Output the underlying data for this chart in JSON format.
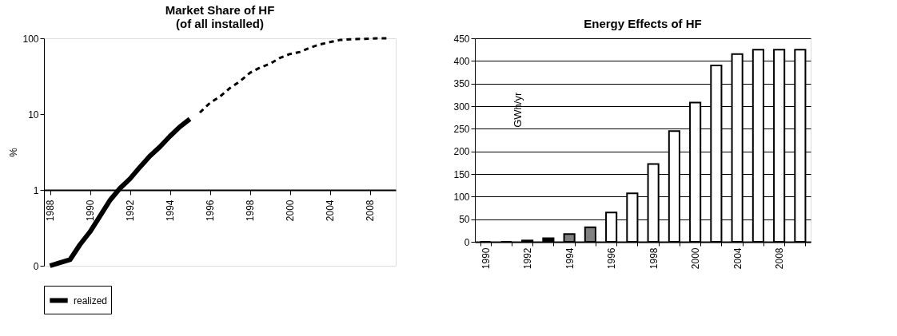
{
  "chart_data": [
    {
      "type": "line",
      "title": "Market Share of HF\n(of all installed)",
      "ylabel": "%",
      "categories": [
        "1988",
        null,
        null,
        null,
        "1990",
        null,
        null,
        null,
        "1992",
        null,
        null,
        null,
        "1994",
        null,
        null,
        null,
        "1996",
        null,
        null,
        null,
        "1998",
        null,
        null,
        null,
        "2000",
        null,
        null,
        null,
        "2004",
        null,
        null,
        null,
        "2008",
        null,
        null
      ],
      "series": [
        {
          "name": "realized",
          "color": "#000000",
          "line_style": "solid",
          "values": [
            0.1,
            0.11,
            0.12,
            0.19,
            0.28,
            0.45,
            0.73,
            1.05,
            1.4,
            2.0,
            2.8,
            3.7,
            5.1,
            6.8,
            8.6,
            null,
            null,
            null,
            null,
            null,
            null,
            null,
            null,
            null,
            null,
            null,
            null,
            null,
            null,
            null,
            null,
            null,
            null,
            null,
            null
          ]
        },
        {
          "color": "#000000",
          "line_style": "dashed",
          "values": [
            null,
            null,
            null,
            null,
            null,
            null,
            null,
            null,
            null,
            null,
            null,
            null,
            null,
            null,
            null,
            10.5,
            14,
            17,
            22,
            27,
            35,
            41,
            46,
            55,
            62,
            66,
            75,
            83,
            89,
            95,
            97,
            98,
            99,
            100,
            100
          ]
        }
      ],
      "log": "y",
      "ylim": [
        0.1,
        100
      ],
      "yticks": [
        {
          "value": 0.1,
          "label": "0"
        },
        1,
        10,
        100
      ],
      "legend": "bottom",
      "grid": false,
      "marker": "none"
    },
    {
      "type": "bar",
      "title": "Energy Effects of HF",
      "ylabel": "GWh/yr",
      "categories": [
        "1990",
        null,
        "1992",
        null,
        "1994",
        null,
        "1996",
        null,
        "1998",
        null,
        "2000",
        null,
        "2004",
        null,
        "2008",
        null
      ],
      "values": [
        0,
        0,
        3,
        8,
        17,
        32,
        65,
        107,
        172,
        245,
        308,
        390,
        415,
        425,
        425,
        425
      ],
      "colors": [
        "#000000",
        "#000000",
        "#000000",
        "#000000",
        "#808080",
        "#808080",
        "#ffffff",
        "#ffffff",
        "#ffffff",
        "#ffffff",
        "#ffffff",
        "#ffffff",
        "#ffffff",
        "#ffffff",
        "#ffffff",
        "#ffffff"
      ],
      "ylim": [
        0,
        450
      ],
      "yticks": [
        0,
        50,
        100,
        150,
        200,
        250,
        300,
        350,
        400,
        450
      ],
      "grid": "y"
    }
  ]
}
